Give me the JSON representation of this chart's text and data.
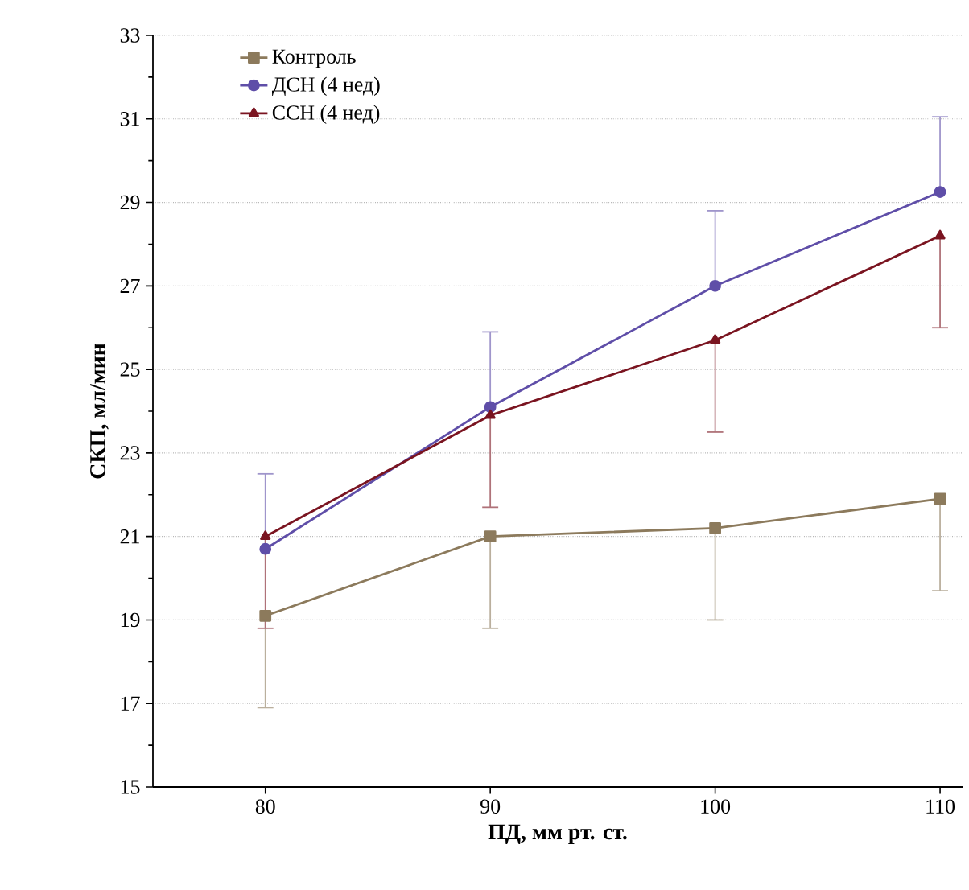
{
  "chart_data": {
    "type": "line",
    "xlabel": "ПД, мм рт. ст.",
    "ylabel": "СКП, мл/мин",
    "x": [
      80,
      90,
      100,
      110
    ],
    "xlim": [
      75,
      111
    ],
    "xticks": [
      80,
      90,
      100,
      110
    ],
    "ylim": [
      15,
      33
    ],
    "yticks": [
      15,
      17,
      19,
      21,
      23,
      25,
      27,
      29,
      31,
      33
    ],
    "grid": "y",
    "legend": "top left",
    "series": [
      {
        "name": "Контроль",
        "color": "#8c7a5c",
        "marker": "square",
        "values": [
          19.1,
          21.0,
          21.2,
          21.9
        ],
        "errors": [
          [
            16.9,
            19.1
          ],
          [
            18.8,
            21.0
          ],
          [
            19.0,
            21.2
          ],
          [
            19.7,
            21.9
          ]
        ]
      },
      {
        "name": "ДСН (4 нед)",
        "color": "#5f4ea8",
        "marker": "circle",
        "values": [
          20.7,
          24.1,
          27.0,
          29.25
        ],
        "errors": [
          [
            20.7,
            22.5
          ],
          [
            24.1,
            25.9
          ],
          [
            27.0,
            28.8
          ],
          [
            29.25,
            31.05
          ]
        ]
      },
      {
        "name": "ССН (4 нед)",
        "color": "#7a1420",
        "marker": "triangle",
        "values": [
          21.0,
          23.9,
          25.7,
          28.2
        ],
        "errors": [
          [
            18.8,
            21.0
          ],
          [
            21.7,
            23.9
          ],
          [
            23.5,
            25.7
          ],
          [
            26.0,
            28.2
          ]
        ]
      }
    ]
  }
}
